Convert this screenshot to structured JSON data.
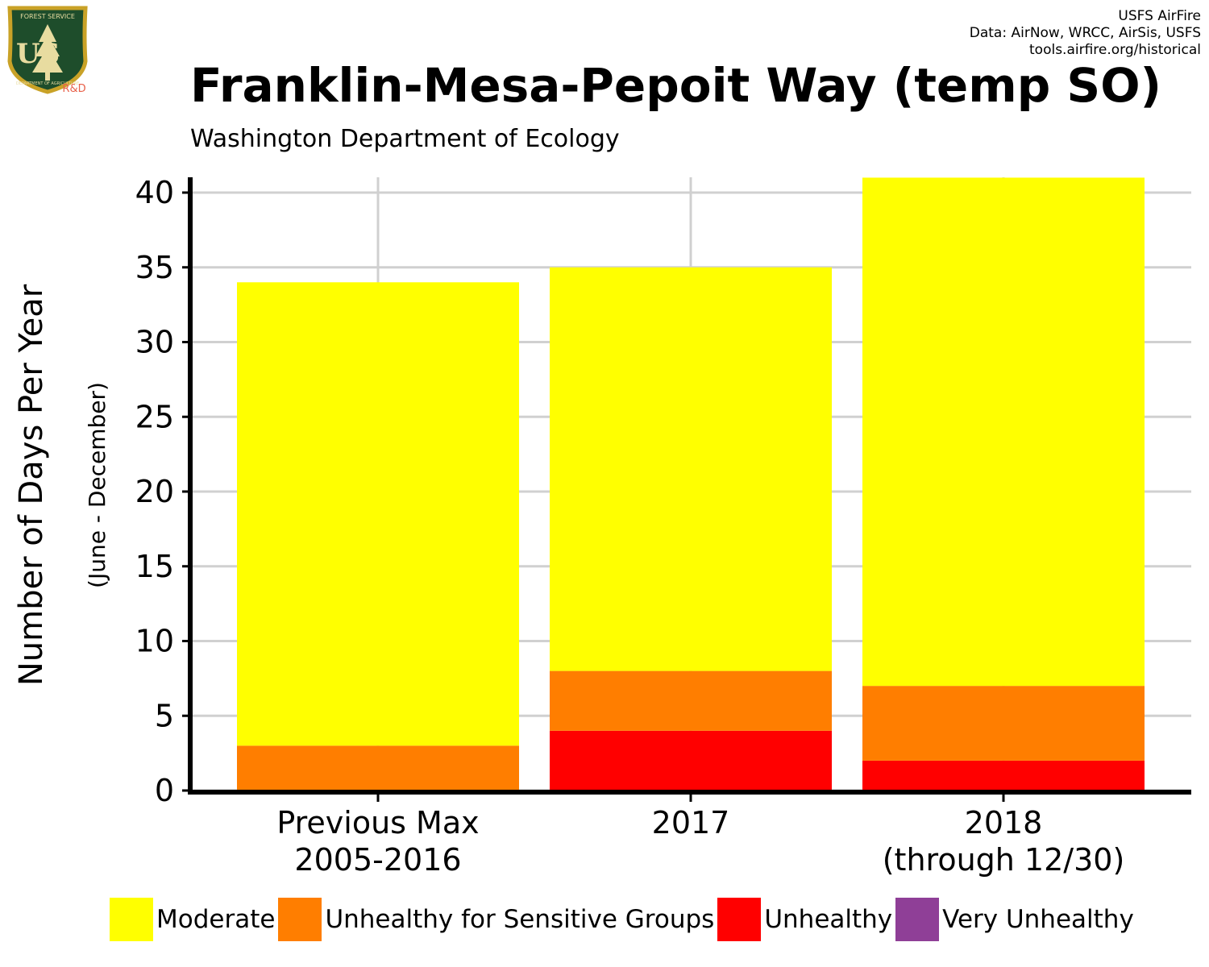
{
  "logo": {
    "top_text": "FOREST SERVICE",
    "letters": "US",
    "bottom_text": "DEPARTMENT OF AGRICULTURE",
    "badge": "R&D",
    "colors": {
      "shield": "#1e4d2b",
      "border": "#c9a227",
      "badge": "#e8614a"
    }
  },
  "credits": {
    "line1": "USFS AirFire",
    "line2": "Data: AirNow, WRCC, AirSis, USFS",
    "line3": "tools.airfire.org/historical"
  },
  "title": "Franklin-Mesa-Pepoit Way (temp SO)",
  "subtitle": "Washington Department of Ecology",
  "chart_data": {
    "type": "bar",
    "stacked": true,
    "title": "Franklin-Mesa-Pepoit Way (temp SO)",
    "subtitle": "Washington Department of Ecology",
    "ylabel": "Number of Days Per Year",
    "ylabel_sub": "(June - December)",
    "xlabel": "",
    "categories": [
      [
        "Previous Max",
        "2005-2016"
      ],
      [
        "2017"
      ],
      [
        "2018",
        "(through 12/30)"
      ]
    ],
    "ylim": [
      0,
      41
    ],
    "yticks": [
      0,
      5,
      10,
      15,
      20,
      25,
      30,
      35,
      40
    ],
    "grid": true,
    "legend_position": "bottom",
    "series": [
      {
        "name": "Unhealthy",
        "color": "#ff0000",
        "values": [
          0,
          4,
          2
        ]
      },
      {
        "name": "Unhealthy for Sensitive Groups",
        "color": "#ff7e00",
        "values": [
          3,
          4,
          5
        ]
      },
      {
        "name": "Moderate",
        "color": "#ffff00",
        "values": [
          31,
          27,
          34
        ]
      }
    ]
  },
  "legend": {
    "items": [
      {
        "label": "Moderate",
        "color": "#ffff00"
      },
      {
        "label": "Unhealthy for Sensitive Groups",
        "color": "#ff7e00"
      },
      {
        "label": "Unhealthy",
        "color": "#ff0000"
      },
      {
        "label": "Very Unhealthy",
        "color": "#8f3f97"
      }
    ]
  }
}
